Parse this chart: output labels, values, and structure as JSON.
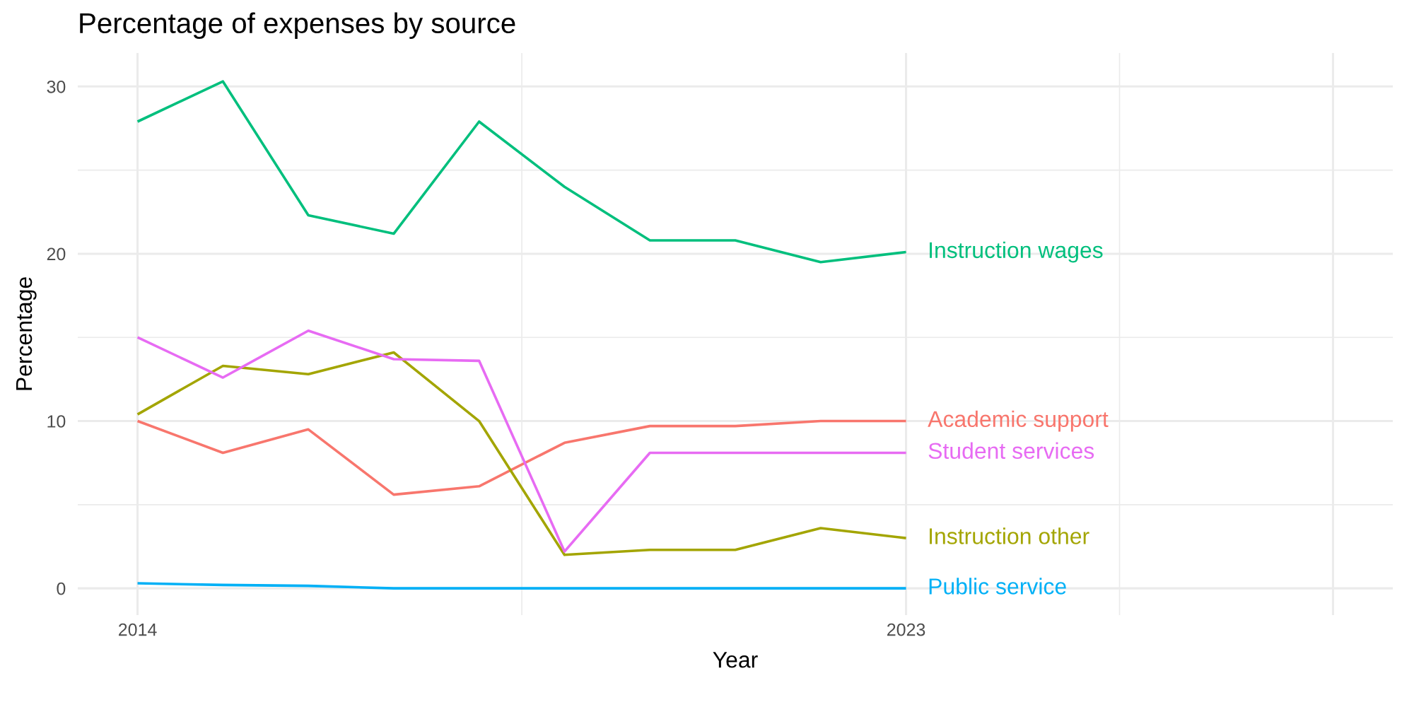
{
  "chart_data": {
    "type": "line",
    "title": "Percentage of expenses by source",
    "xlabel": "Year",
    "ylabel": "Percentage",
    "x": [
      2014,
      2015,
      2016,
      2017,
      2018,
      2019,
      2020,
      2021,
      2022,
      2023
    ],
    "series": [
      {
        "name": "Academic support",
        "color": "#f8766d",
        "values": [
          10.0,
          8.1,
          9.5,
          5.6,
          6.1,
          8.7,
          9.7,
          9.7,
          10.0,
          10.0
        ]
      },
      {
        "name": "Instruction other",
        "color": "#a3a500",
        "values": [
          10.4,
          13.3,
          12.8,
          14.1,
          10.0,
          2.0,
          2.3,
          2.3,
          3.6,
          3.0
        ]
      },
      {
        "name": "Instruction wages",
        "color": "#00bf7d",
        "values": [
          27.9,
          30.3,
          22.3,
          21.2,
          27.9,
          24.0,
          20.8,
          20.8,
          19.5,
          20.1
        ]
      },
      {
        "name": "Public service",
        "color": "#00b0f6",
        "values": [
          0.3,
          0.2,
          0.15,
          0.0,
          0.0,
          0.0,
          0.0,
          0.0,
          0.0,
          0.0
        ]
      },
      {
        "name": "Student services",
        "color": "#e76bf3",
        "values": [
          15.0,
          12.6,
          15.4,
          13.7,
          13.6,
          2.2,
          8.1,
          8.1,
          8.1,
          8.1
        ]
      }
    ],
    "xlim": [
      2013.3,
      2028.7
    ],
    "xticks": [
      2014,
      2023,
      {
        "value": 2028,
        "label": null
      }
    ],
    "ylim": [
      -1.6,
      32
    ],
    "yticks": [
      0,
      10,
      20,
      30
    ],
    "grid": true,
    "legend": false,
    "marker": "none",
    "line_style": "solid"
  }
}
